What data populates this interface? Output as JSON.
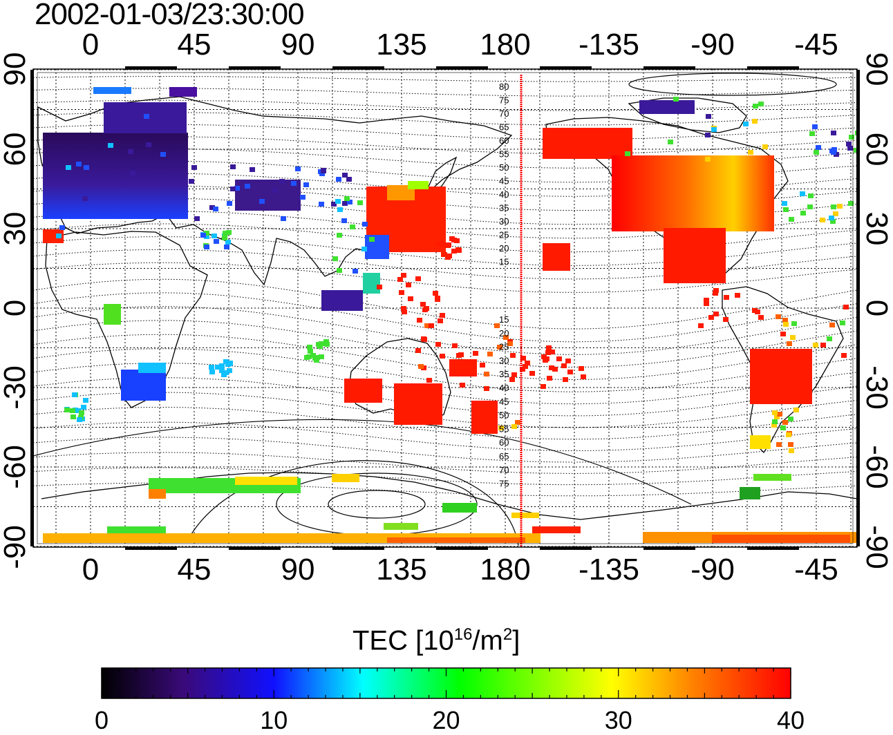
{
  "title": "2002-01-03/23:30:00",
  "map": {
    "lon_labels_top": [
      "0",
      "45",
      "90",
      "135",
      "180",
      "-135",
      "-90",
      "-45"
    ],
    "lon_labels_bottom": [
      "0",
      "45",
      "90",
      "135",
      "180",
      "-135",
      "-90",
      "-45"
    ],
    "lat_labels_left": [
      "90",
      "60",
      "30",
      "0",
      "-30",
      "-60",
      "-90"
    ],
    "lat_labels_right": [
      "90",
      "60",
      "30",
      "0",
      "-30",
      "-60",
      "-90"
    ],
    "magnetic_lat_labels_north": [
      "80",
      "75",
      "70",
      "65",
      "60",
      "55",
      "50",
      "45",
      "40",
      "35",
      "30",
      "25",
      "20",
      "15"
    ],
    "magnetic_lat_labels_south": [
      "15",
      "20",
      "25",
      "30",
      "35",
      "40",
      "45",
      "50",
      "55",
      "60",
      "65",
      "70",
      "75"
    ],
    "terminator_color": "#ff0000"
  },
  "colorbar": {
    "title_prefix": "TEC  [10",
    "title_sup1": "16",
    "title_mid": "/m",
    "title_sup2": "2",
    "title_suffix": "]",
    "ticks": [
      "0",
      "10",
      "20",
      "30",
      "40"
    ],
    "colors": [
      "#000000",
      "#3a0a7a",
      "#1010ff",
      "#00ffff",
      "#00ff00",
      "#ffff00",
      "#ff8000",
      "#ff0000"
    ]
  }
}
